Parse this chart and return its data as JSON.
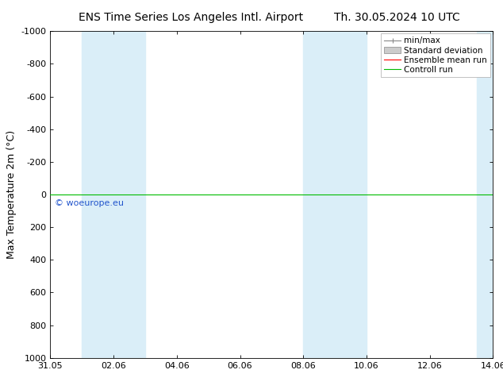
{
  "title_left": "ENS Time Series Los Angeles Intl. Airport",
  "title_right": "Th. 30.05.2024 10 UTC",
  "ylabel": "Max Temperature 2m (°C)",
  "ylim_bottom": 1000,
  "ylim_top": -1000,
  "yticks": [
    -1000,
    -800,
    -600,
    -400,
    -200,
    0,
    200,
    400,
    600,
    800,
    1000
  ],
  "xtick_labels": [
    "31.05",
    "02.06",
    "04.06",
    "06.06",
    "08.06",
    "10.06",
    "12.06",
    "14.06"
  ],
  "xtick_positions": [
    0,
    2,
    4,
    6,
    8,
    10,
    12,
    14
  ],
  "xlim": [
    0,
    14
  ],
  "blue_shade_ranges": [
    [
      1,
      3
    ],
    [
      8,
      10
    ],
    [
      13.5,
      14
    ]
  ],
  "green_line_y": 0,
  "watermark": "© woeurope.eu",
  "watermark_color": "#2255cc",
  "legend_labels": [
    "min/max",
    "Standard deviation",
    "Ensemble mean run",
    "Controll run"
  ],
  "legend_minmax_color": "#888888",
  "legend_std_color": "#cccccc",
  "legend_ens_color": "#ff0000",
  "legend_ctrl_color": "#00bb00",
  "bg_color": "#ffffff",
  "plot_bg_color": "#ffffff",
  "blue_shade_color": "#daeef8",
  "title_fontsize": 10,
  "axis_label_fontsize": 9,
  "tick_fontsize": 8,
  "legend_fontsize": 7.5,
  "watermark_fontsize": 8
}
